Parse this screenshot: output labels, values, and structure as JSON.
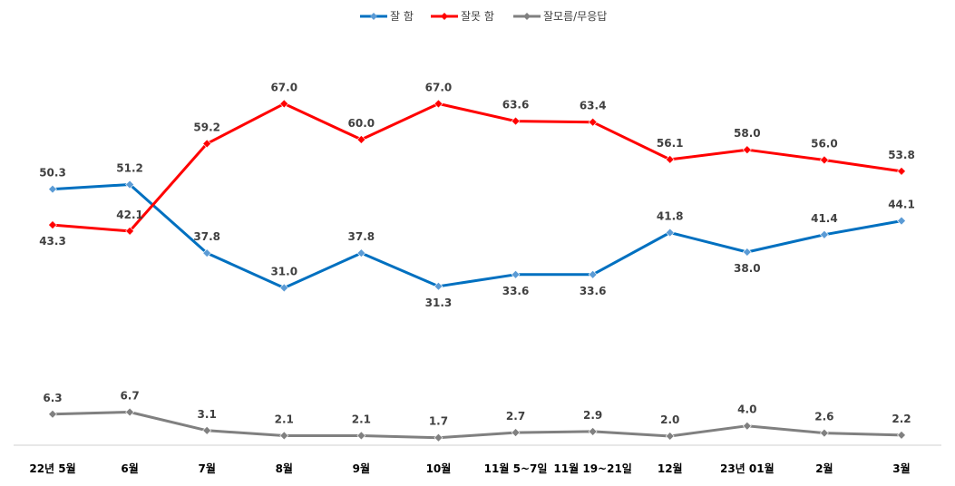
{
  "chart_data": {
    "type": "line",
    "title": "",
    "xlabel": "",
    "ylabel": "",
    "ylim": [
      0,
      80
    ],
    "grid": false,
    "legend_position": "top-center",
    "categories": [
      "22년 5월",
      "6월",
      "7월",
      "8월",
      "9월",
      "10월",
      "11월 5~7일",
      "11월 19~21일",
      "12월",
      "23년 01월",
      "2월",
      "3월"
    ],
    "series": [
      {
        "name": "잘 함",
        "color": "#0070C0",
        "marker_color": "#5B9BD5",
        "values": [
          50.3,
          51.2,
          37.8,
          31.0,
          37.8,
          31.3,
          33.6,
          33.6,
          41.8,
          38.0,
          41.4,
          44.1
        ],
        "labels": [
          "50.3",
          "51.2",
          "37.8",
          "31.0",
          "37.8",
          "31.3",
          "33.6",
          "33.6",
          "41.8",
          "38.0",
          "41.4",
          "44.1"
        ]
      },
      {
        "name": "잘못 함",
        "color": "#FF0000",
        "marker_color": "#FF0000",
        "values": [
          43.3,
          42.1,
          59.2,
          67.0,
          60.0,
          67.0,
          63.6,
          63.4,
          56.1,
          58.0,
          56.0,
          53.8
        ],
        "labels": [
          "43.3",
          "42.1",
          "59.2",
          "67.0",
          "60.0",
          "67.0",
          "63.6",
          "63.4",
          "56.1",
          "58.0",
          "56.0",
          "53.8"
        ]
      },
      {
        "name": "잘모름/무응답",
        "color": "#808080",
        "marker_color": "#808080",
        "values": [
          6.3,
          6.7,
          3.1,
          2.1,
          2.1,
          1.7,
          2.7,
          2.9,
          2.0,
          4.0,
          2.6,
          2.2
        ],
        "labels": [
          "6.3",
          "6.7",
          "3.1",
          "2.1",
          "2.1",
          "1.7",
          "2.7",
          "2.9",
          "2.0",
          "4.0",
          "2.6",
          "2.2"
        ]
      }
    ]
  }
}
